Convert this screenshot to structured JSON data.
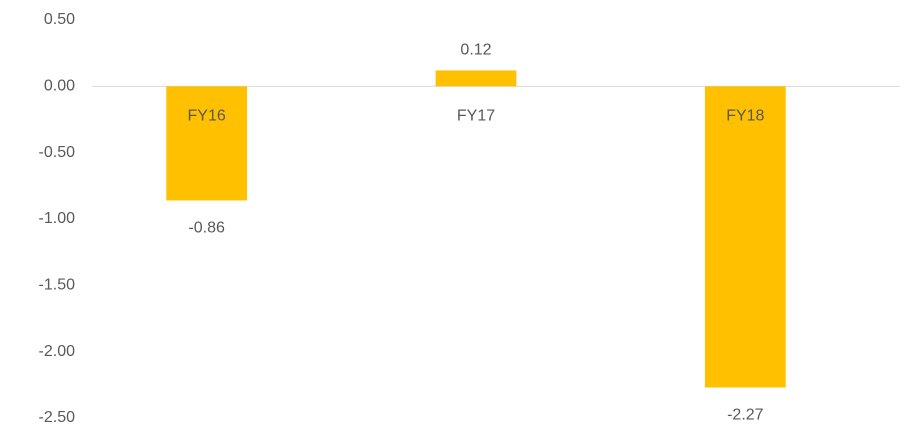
{
  "chart_data": {
    "type": "bar",
    "categories": [
      "FY16",
      "FY17",
      "FY18"
    ],
    "values": [
      -0.86,
      0.12,
      -2.27
    ],
    "color": "#ffc000",
    "ylim": [
      -2.5,
      0.5
    ],
    "yticks": [
      {
        "value": 0.5,
        "label": "0.50"
      },
      {
        "value": 0,
        "label": "0.00"
      },
      {
        "value": -0.5,
        "label": "-0.50"
      },
      {
        "value": -1,
        "label": "-1.00"
      },
      {
        "value": -1.5,
        "label": "-1.50"
      },
      {
        "value": -2,
        "label": "-2.00"
      },
      {
        "value": -2.5,
        "label": "-2.50"
      }
    ],
    "grid": false
  }
}
